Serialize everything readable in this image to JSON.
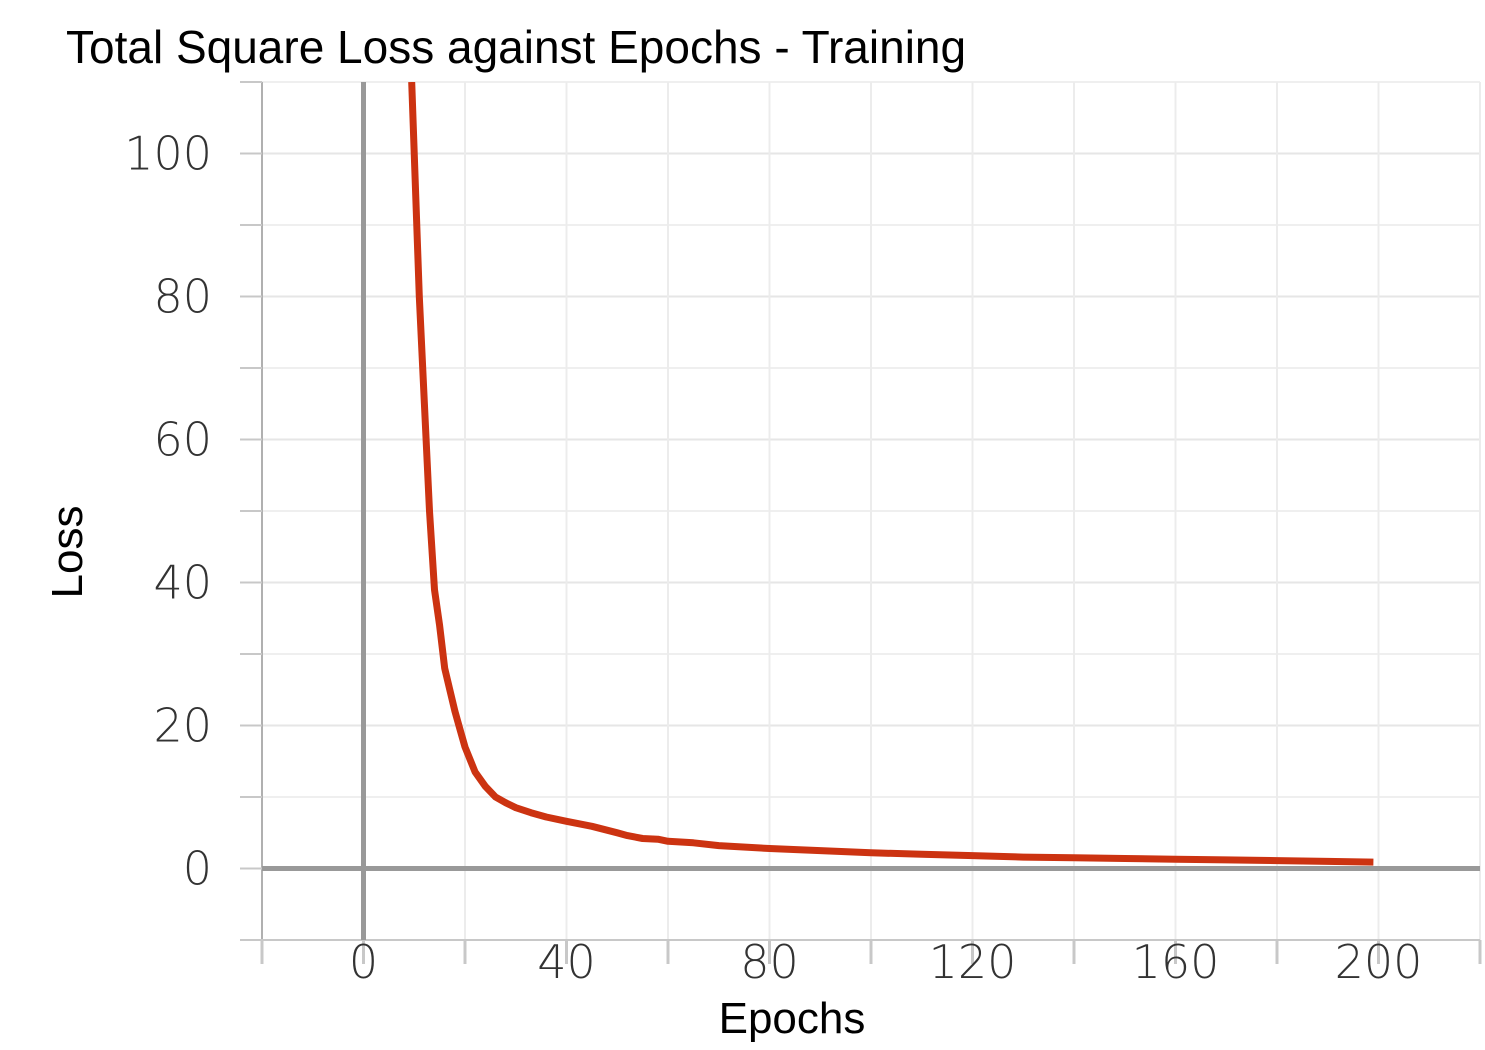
{
  "chart_data": {
    "type": "line",
    "title": "Total Square Loss against Epochs - Training",
    "xlabel": "Epochs",
    "ylabel": "Loss",
    "xlim": [
      -20,
      220
    ],
    "ylim": [
      -10,
      110
    ],
    "xticks": [
      0,
      40,
      80,
      120,
      160,
      200
    ],
    "yticks": [
      0,
      20,
      40,
      60,
      80,
      100
    ],
    "grid": true,
    "color": "#cc3311",
    "series": [
      {
        "x": [
          9.5,
          11,
          12,
          13,
          14,
          15,
          16,
          17,
          18,
          19,
          20,
          22,
          24,
          26,
          28,
          30,
          33,
          36,
          40,
          45,
          50,
          52,
          55,
          58,
          60,
          65,
          70,
          80,
          90,
          100,
          110,
          120,
          130,
          140,
          150,
          160,
          170,
          180,
          190,
          199
        ],
        "y": [
          110,
          80,
          65,
          50,
          39,
          34,
          28,
          25,
          22,
          19.5,
          17,
          13.5,
          11.5,
          10,
          9.2,
          8.5,
          7.8,
          7.2,
          6.6,
          5.9,
          5,
          4.6,
          4.2,
          4.1,
          3.8,
          3.6,
          3.2,
          2.8,
          2.5,
          2.2,
          2.0,
          1.8,
          1.6,
          1.5,
          1.4,
          1.3,
          1.2,
          1.1,
          1.0,
          0.9
        ]
      }
    ]
  }
}
